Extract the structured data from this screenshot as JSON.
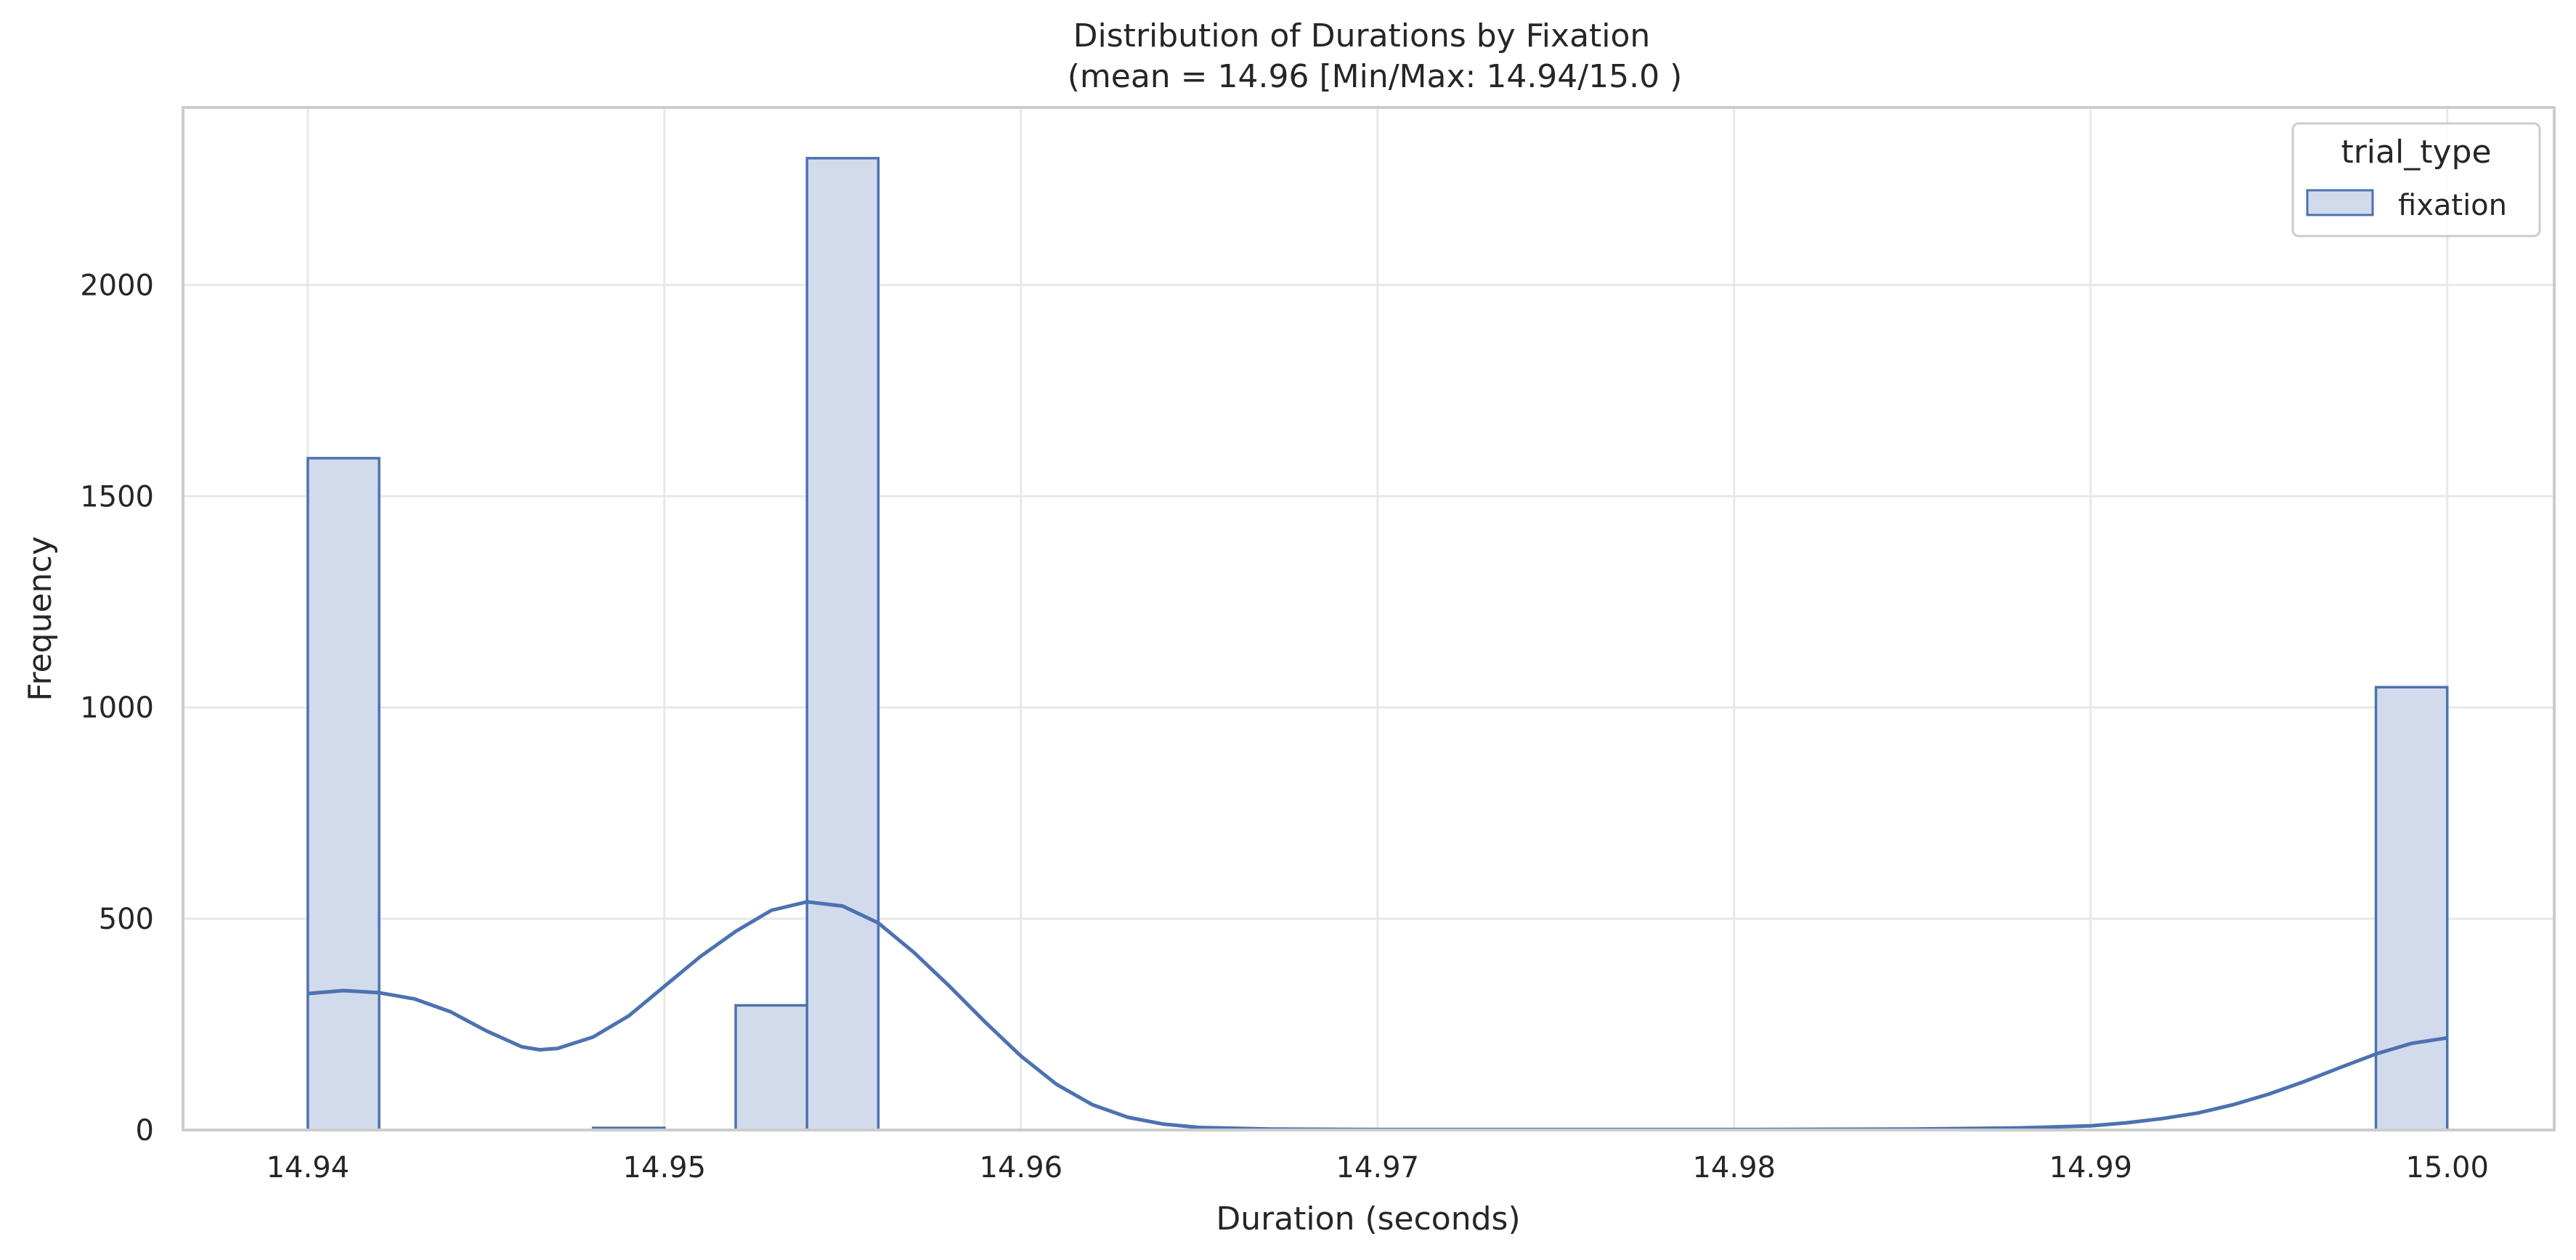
{
  "chart_data": {
    "type": "bar",
    "title_line1": "Distribution of Durations by Fixation",
    "title_line2": "(mean = 14.96 [Min/Max: 14.94/15.0 )",
    "xlabel": "Duration (seconds)",
    "ylabel": "Frequency",
    "xlim": [
      14.9365,
      15.003
    ],
    "ylim": [
      0,
      2420
    ],
    "xticks": [
      {
        "value": 14.94,
        "label": "14.94"
      },
      {
        "value": 14.95,
        "label": "14.95"
      },
      {
        "value": 14.96,
        "label": "14.96"
      },
      {
        "value": 14.97,
        "label": "14.97"
      },
      {
        "value": 14.98,
        "label": "14.98"
      },
      {
        "value": 14.99,
        "label": "14.99"
      },
      {
        "value": 15.0,
        "label": "15.00"
      }
    ],
    "yticks": [
      {
        "value": 0,
        "label": "0"
      },
      {
        "value": 500,
        "label": "500"
      },
      {
        "value": 1000,
        "label": "1000"
      },
      {
        "value": 1500,
        "label": "1500"
      },
      {
        "value": 2000,
        "label": "2000"
      }
    ],
    "bins": [
      {
        "x0": 14.94,
        "x1": 14.942,
        "count": 1590
      },
      {
        "x0": 14.948,
        "x1": 14.95,
        "count": 5
      },
      {
        "x0": 14.952,
        "x1": 14.954,
        "count": 295
      },
      {
        "x0": 14.954,
        "x1": 14.956,
        "count": 2300
      },
      {
        "x0": 14.998,
        "x1": 15.0,
        "count": 1048
      }
    ],
    "kde": [
      [
        14.94,
        323
      ],
      [
        14.941,
        330
      ],
      [
        14.942,
        325
      ],
      [
        14.943,
        310
      ],
      [
        14.944,
        280
      ],
      [
        14.945,
        235
      ],
      [
        14.946,
        197
      ],
      [
        14.9465,
        190
      ],
      [
        14.947,
        193
      ],
      [
        14.948,
        220
      ],
      [
        14.949,
        270
      ],
      [
        14.95,
        340
      ],
      [
        14.951,
        410
      ],
      [
        14.952,
        470
      ],
      [
        14.953,
        520
      ],
      [
        14.954,
        540
      ],
      [
        14.955,
        530
      ],
      [
        14.956,
        490
      ],
      [
        14.957,
        420
      ],
      [
        14.958,
        340
      ],
      [
        14.959,
        255
      ],
      [
        14.96,
        175
      ],
      [
        14.961,
        108
      ],
      [
        14.962,
        60
      ],
      [
        14.963,
        30
      ],
      [
        14.964,
        14
      ],
      [
        14.965,
        6
      ],
      [
        14.967,
        2
      ],
      [
        14.97,
        1
      ],
      [
        14.98,
        1
      ],
      [
        14.985,
        2
      ],
      [
        14.988,
        5
      ],
      [
        14.99,
        10
      ],
      [
        14.991,
        17
      ],
      [
        14.992,
        27
      ],
      [
        14.993,
        40
      ],
      [
        14.994,
        60
      ],
      [
        14.995,
        85
      ],
      [
        14.996,
        115
      ],
      [
        14.997,
        148
      ],
      [
        14.998,
        180
      ],
      [
        14.999,
        205
      ],
      [
        15.0,
        218
      ]
    ],
    "grid": true,
    "legend": {
      "title": "trial_type",
      "placement": "top-right",
      "entries": [
        "fixation"
      ]
    },
    "colors": {
      "bar_fill": "#d2dbeb",
      "bar_edge": "#4c72b0",
      "kde_line": "#4c72b0",
      "grid": "#e8e8e8",
      "axes": "#cccccc"
    }
  }
}
